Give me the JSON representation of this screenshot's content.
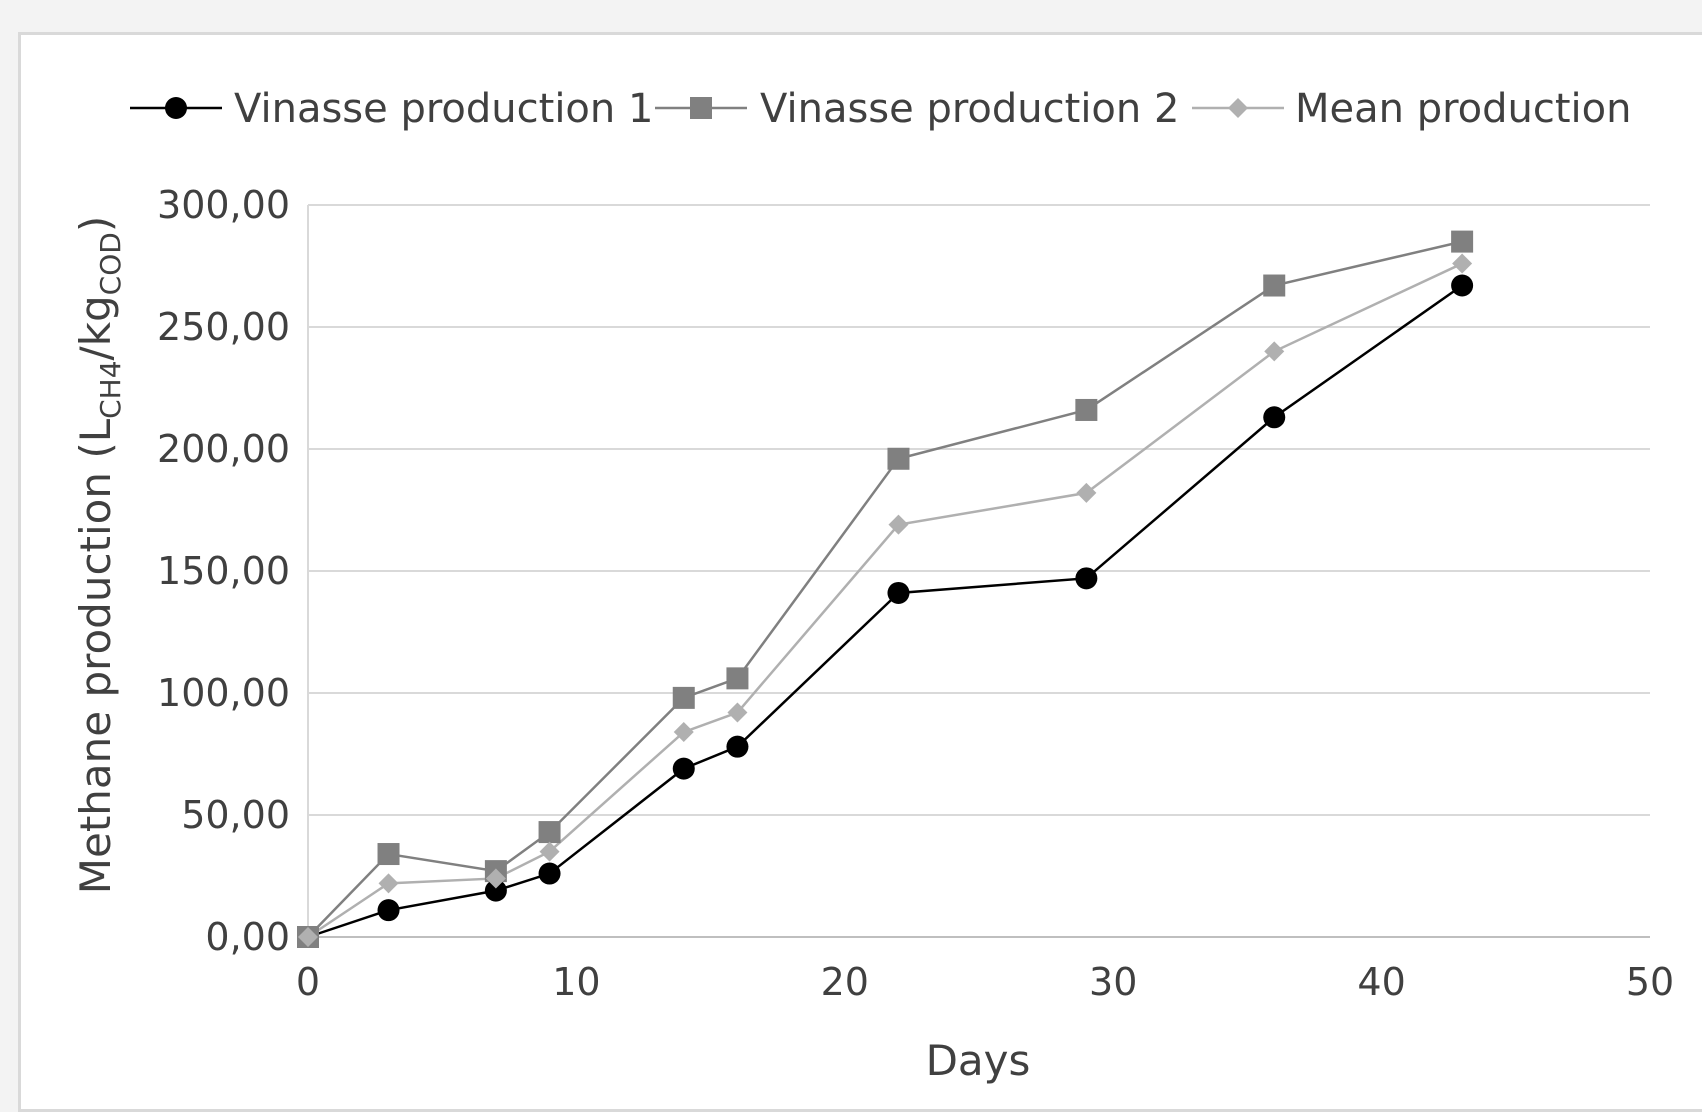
{
  "chart_data": {
    "type": "line",
    "xlabel": "Days",
    "ylabel": {
      "main": "Methane production (L",
      "sub1": "CH4",
      "mid": "/kg",
      "sub2": "COD",
      "end": ")"
    },
    "xlim": [
      0,
      50
    ],
    "ylim": [
      0,
      300
    ],
    "x_ticks": [
      0,
      10,
      20,
      30,
      40,
      50
    ],
    "x_tick_labels": [
      "0",
      "10",
      "20",
      "30",
      "40",
      "50"
    ],
    "y_ticks": [
      0,
      50,
      100,
      150,
      200,
      250,
      300
    ],
    "y_tick_labels": [
      "0,00",
      "50,00",
      "100,00",
      "150,00",
      "200,00",
      "250,00",
      "300,00"
    ],
    "grid": "horizontal",
    "legend_position": "top",
    "x": [
      0,
      3,
      7,
      9,
      14,
      16,
      22,
      29,
      36,
      43
    ],
    "series": [
      {
        "name": "Vinasse production 1",
        "marker": "circle",
        "color": "#000000",
        "values": [
          0,
          11,
          19,
          26,
          69,
          78,
          141,
          147,
          213,
          267
        ]
      },
      {
        "name": "Vinasse production 2",
        "marker": "square",
        "color": "#808080",
        "values": [
          0,
          34,
          27,
          43,
          98,
          106,
          196,
          216,
          267,
          285
        ]
      },
      {
        "name": "Mean production",
        "marker": "diamond",
        "color": "#b0b0b0",
        "values": [
          0,
          22,
          24,
          35,
          84,
          92,
          169,
          182,
          240,
          276
        ]
      }
    ]
  }
}
